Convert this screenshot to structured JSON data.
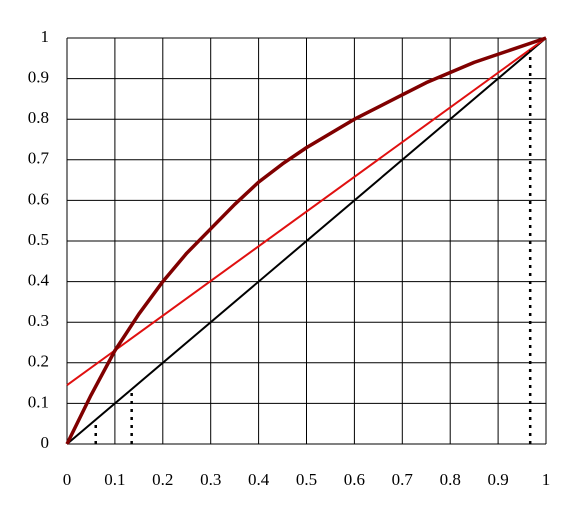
{
  "chart_data": {
    "type": "line",
    "xlim": [
      0,
      1
    ],
    "ylim": [
      0,
      1
    ],
    "xticks": [
      0,
      0.1,
      0.2,
      0.3,
      0.4,
      0.5,
      0.6,
      0.7,
      0.8,
      0.9,
      1
    ],
    "yticks": [
      0,
      0.1,
      0.2,
      0.3,
      0.4,
      0.5,
      0.6,
      0.7,
      0.8,
      0.9,
      1
    ],
    "grid": true,
    "series": [
      {
        "color": "#000000",
        "width": 2,
        "dash": "none",
        "x": [
          0,
          1
        ],
        "values": [
          0,
          1
        ]
      },
      {
        "color": "#e01010",
        "width": 2,
        "dash": "none",
        "x": [
          0,
          1
        ],
        "values": [
          0.145,
          1
        ]
      },
      {
        "color": "#800000",
        "width": 3.5,
        "dash": "none",
        "x": [
          0,
          0.05,
          0.1,
          0.15,
          0.2,
          0.25,
          0.3,
          0.35,
          0.4,
          0.45,
          0.5,
          0.6,
          0.7,
          0.75,
          0.8,
          0.85,
          0.9,
          1
        ],
        "values": [
          0,
          0.12,
          0.23,
          0.32,
          0.4,
          0.47,
          0.53,
          0.59,
          0.645,
          0.69,
          0.73,
          0.8,
          0.86,
          0.89,
          0.915,
          0.94,
          0.96,
          1
        ]
      },
      {
        "color": "#000000",
        "width": 2.5,
        "dash": "3,5",
        "x": [
          0.06,
          0.06
        ],
        "values": [
          0,
          0.05
        ]
      },
      {
        "color": "#000000",
        "width": 2.5,
        "dash": "3,5",
        "x": [
          0.135,
          0.135
        ],
        "values": [
          0,
          0.13
        ]
      },
      {
        "color": "#000000",
        "width": 2.5,
        "dash": "3,5",
        "x": [
          0.967,
          0.967
        ],
        "values": [
          0,
          0.97
        ]
      }
    ]
  }
}
